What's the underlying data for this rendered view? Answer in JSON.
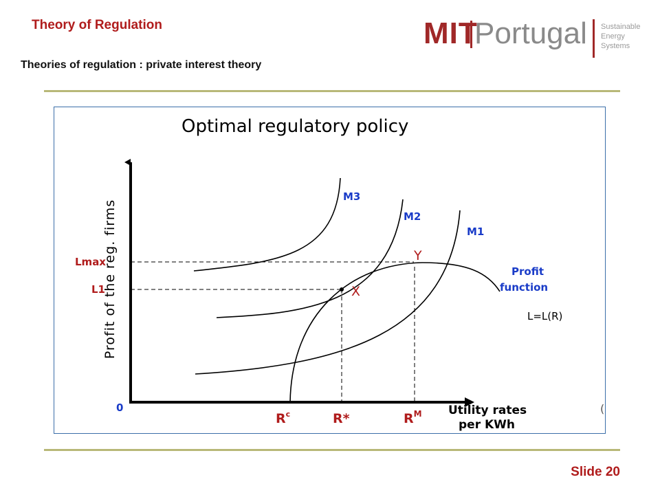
{
  "slide": {
    "title": "Theory of Regulation",
    "subtitle": "Theories of regulation : private interest  theory",
    "slide_label": "Slide",
    "slide_number": "20"
  },
  "logo": {
    "mit": "MIT",
    "portugal": "Portugal",
    "sub_line1": "Sustainable",
    "sub_line2": "Energy",
    "sub_line3": "Systems"
  },
  "figure": {
    "title": "Optimal regulatory policy",
    "y_axis_label": "Profit of the reg. firms",
    "x_axis_label_line1": "Utility rates",
    "x_axis_label_line2": "per KWh",
    "origin": "0",
    "lmax": "Lmax",
    "l1": "L1",
    "curve_m3": "M3",
    "curve_m2": "M2",
    "curve_m1": "M1",
    "profit_line1": "Profit",
    "profit_line2": "function",
    "equation": "L=L(R)",
    "point_y": "Y",
    "point_x": "X",
    "rc_base": "R",
    "rc_sup": "c",
    "rstar": "R*",
    "rm_base": "R",
    "rm_sup": "M",
    "stray_mark": "("
  },
  "colors": {
    "accent_red": "#b01c1c",
    "label_blue": "#1a3cc8",
    "rule_olive": "#b8b878"
  }
}
